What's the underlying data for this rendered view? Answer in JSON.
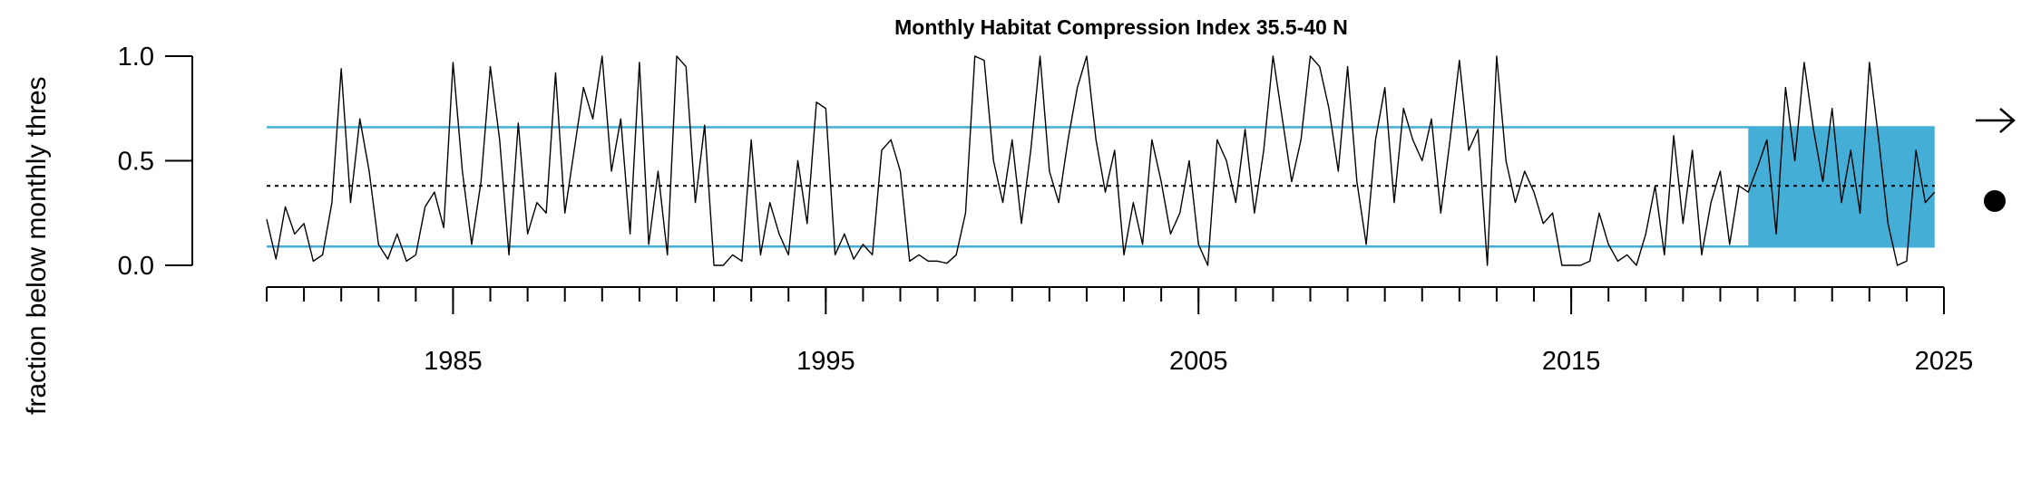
{
  "chart_data": {
    "type": "line",
    "title": "Monthly Habitat Compression Index 35.5-40 N",
    "y_label": "fraction below monthly thres",
    "xlim": [
      1980,
      2025
    ],
    "ylim": [
      0,
      1
    ],
    "xticks": [
      1985,
      1995,
      2005,
      2015,
      2025
    ],
    "xminorticks": [
      1980,
      1981,
      1982,
      1983,
      1984,
      1985,
      1986,
      1987,
      1988,
      1989,
      1990,
      1991,
      1992,
      1993,
      1994,
      1995,
      1996,
      1997,
      1998,
      1999,
      2000,
      2001,
      2002,
      2003,
      2004,
      2005,
      2006,
      2007,
      2008,
      2009,
      2010,
      2011,
      2012,
      2013,
      2014,
      2015,
      2016,
      2017,
      2018,
      2019,
      2020,
      2021,
      2022,
      2023,
      2024,
      2025
    ],
    "yticks": [
      {
        "value": 0,
        "label": "0.0"
      },
      0.5,
      {
        "value": 1,
        "label": "1.0"
      }
    ],
    "color": "#000000",
    "hlines": [
      {
        "value": 0.66,
        "color": "#45aed6",
        "style": "solid"
      },
      {
        "value": 0.09,
        "color": "#45aed6",
        "style": "solid"
      },
      {
        "value": 0.38,
        "color": "#000000",
        "style": "dotted"
      }
    ],
    "shade": {
      "x": [
        2019.75,
        2024.75
      ],
      "y": [
        0.09,
        0.66
      ],
      "color": "#45aed6"
    },
    "x": [
      1980,
      1980.25,
      1980.5,
      1980.75,
      1981,
      1981.25,
      1981.5,
      1981.75,
      1982,
      1982.25,
      1982.5,
      1982.75,
      1983,
      1983.25,
      1983.5,
      1983.75,
      1984,
      1984.25,
      1984.5,
      1984.75,
      1985,
      1985.25,
      1985.5,
      1985.75,
      1986,
      1986.25,
      1986.5,
      1986.75,
      1987,
      1987.25,
      1987.5,
      1987.75,
      1988,
      1988.25,
      1988.5,
      1988.75,
      1989,
      1989.25,
      1989.5,
      1989.75,
      1990,
      1990.25,
      1990.5,
      1990.75,
      1991,
      1991.25,
      1991.5,
      1991.75,
      1992,
      1992.25,
      1992.5,
      1992.75,
      1993,
      1993.25,
      1993.5,
      1993.75,
      1994,
      1994.25,
      1994.5,
      1994.75,
      1995,
      1995.25,
      1995.5,
      1995.75,
      1996,
      1996.25,
      1996.5,
      1996.75,
      1997,
      1997.25,
      1997.5,
      1997.75,
      1998,
      1998.25,
      1998.5,
      1998.75,
      1999,
      1999.25,
      1999.5,
      1999.75,
      2000,
      2000.25,
      2000.5,
      2000.75,
      2001,
      2001.25,
      2001.5,
      2001.75,
      2002,
      2002.25,
      2002.5,
      2002.75,
      2003,
      2003.25,
      2003.5,
      2003.75,
      2004,
      2004.25,
      2004.5,
      2004.75,
      2005,
      2005.25,
      2005.5,
      2005.75,
      2006,
      2006.25,
      2006.5,
      2006.75,
      2007,
      2007.25,
      2007.5,
      2007.75,
      2008,
      2008.25,
      2008.5,
      2008.75,
      2009,
      2009.25,
      2009.5,
      2009.75,
      2010,
      2010.25,
      2010.5,
      2010.75,
      2011,
      2011.25,
      2011.5,
      2011.75,
      2012,
      2012.25,
      2012.5,
      2012.75,
      2013,
      2013.25,
      2013.5,
      2013.75,
      2014,
      2014.25,
      2014.5,
      2014.75,
      2015,
      2015.25,
      2015.5,
      2015.75,
      2016,
      2016.25,
      2016.5,
      2016.75,
      2017,
      2017.25,
      2017.5,
      2017.75,
      2018,
      2018.25,
      2018.5,
      2018.75,
      2019,
      2019.25,
      2019.5,
      2019.75,
      2020,
      2020.25,
      2020.5,
      2020.75,
      2021,
      2021.25,
      2021.5,
      2021.75,
      2022,
      2022.25,
      2022.5,
      2022.75,
      2023,
      2023.25,
      2023.5,
      2023.75,
      2024,
      2024.25,
      2024.5,
      2024.75
    ],
    "values": [
      0.22,
      0.03,
      0.28,
      0.15,
      0.2,
      0.02,
      0.05,
      0.3,
      0.94,
      0.3,
      0.7,
      0.45,
      0.1,
      0.03,
      0.15,
      0.02,
      0.05,
      0.28,
      0.35,
      0.18,
      0.97,
      0.45,
      0.1,
      0.4,
      0.95,
      0.6,
      0.05,
      0.68,
      0.15,
      0.3,
      0.25,
      0.92,
      0.25,
      0.55,
      0.85,
      0.7,
      1.0,
      0.45,
      0.7,
      0.15,
      0.97,
      0.1,
      0.45,
      0.05,
      1.0,
      0.95,
      0.3,
      0.67,
      0.0,
      0.0,
      0.05,
      0.02,
      0.6,
      0.05,
      0.3,
      0.15,
      0.05,
      0.5,
      0.2,
      0.78,
      0.75,
      0.05,
      0.15,
      0.03,
      0.1,
      0.05,
      0.55,
      0.6,
      0.45,
      0.02,
      0.05,
      0.02,
      0.02,
      0.01,
      0.05,
      0.25,
      1.0,
      0.98,
      0.5,
      0.3,
      0.6,
      0.2,
      0.55,
      1.0,
      0.45,
      0.3,
      0.6,
      0.85,
      1.0,
      0.6,
      0.35,
      0.55,
      0.05,
      0.3,
      0.1,
      0.6,
      0.4,
      0.15,
      0.25,
      0.5,
      0.1,
      0.0,
      0.6,
      0.5,
      0.3,
      0.65,
      0.25,
      0.55,
      1.0,
      0.7,
      0.4,
      0.6,
      1.0,
      0.95,
      0.75,
      0.45,
      0.95,
      0.4,
      0.1,
      0.6,
      0.85,
      0.3,
      0.75,
      0.6,
      0.5,
      0.7,
      0.25,
      0.6,
      0.98,
      0.55,
      0.65,
      0.0,
      1.0,
      0.5,
      0.3,
      0.45,
      0.35,
      0.2,
      0.25,
      0.0,
      0.0,
      0.0,
      0.02,
      0.25,
      0.1,
      0.02,
      0.05,
      0.0,
      0.15,
      0.38,
      0.05,
      0.62,
      0.2,
      0.55,
      0.05,
      0.3,
      0.45,
      0.1,
      0.38,
      0.35,
      0.47,
      0.6,
      0.15,
      0.85,
      0.5,
      0.97,
      0.65,
      0.4,
      0.75,
      0.3,
      0.55,
      0.25,
      0.97,
      0.6,
      0.2,
      0.0,
      0.02,
      0.55,
      0.3,
      0.35
    ]
  }
}
